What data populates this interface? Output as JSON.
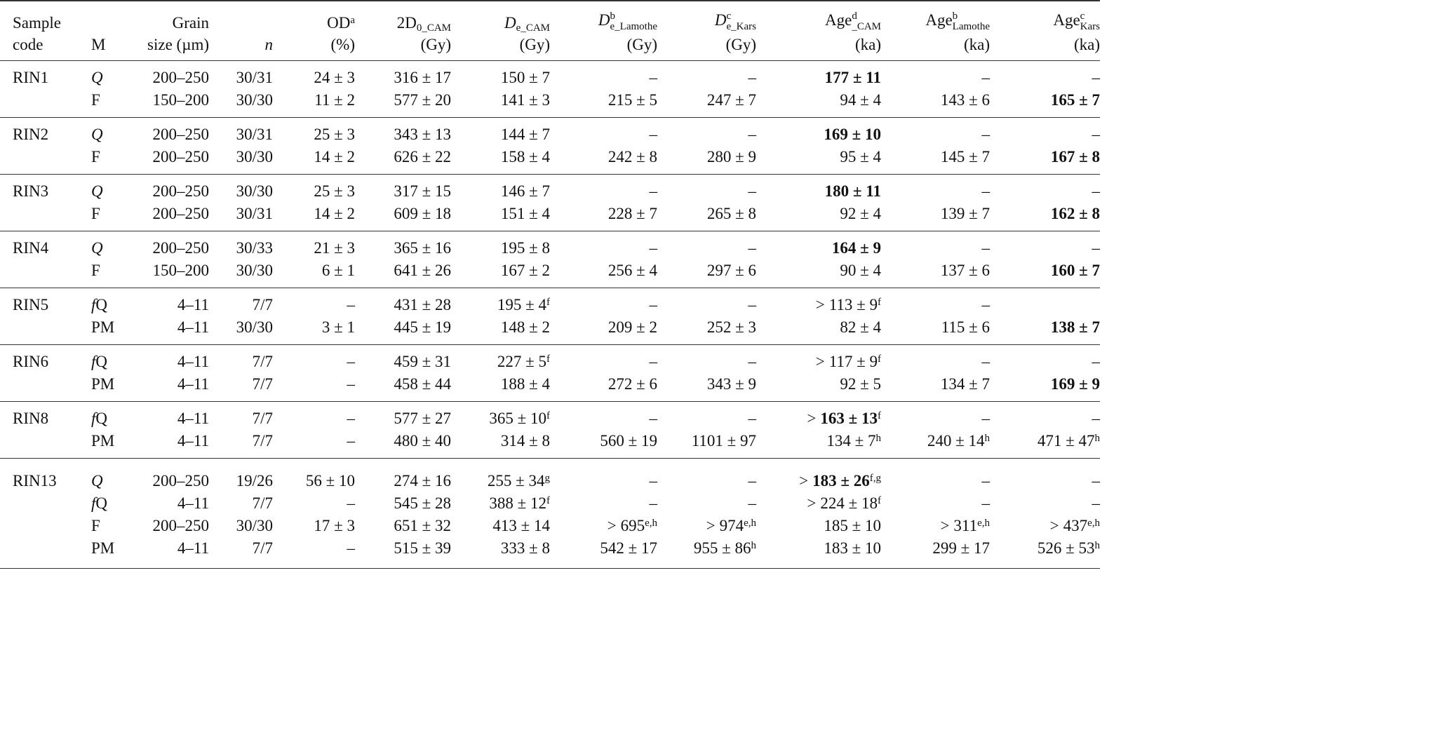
{
  "header": {
    "sample": [
      "Sample",
      "code"
    ],
    "m": "M",
    "grain": [
      "Grain",
      "size (µm)"
    ],
    "n": "n",
    "od": {
      "main": "OD",
      "sup": "a",
      "unit": "(%)"
    },
    "d0": {
      "main": "2D",
      "sub": "0_CAM",
      "unit": "(Gy)"
    },
    "de_cam": {
      "main": "D",
      "sub": "e_CAM",
      "unit": "(Gy)"
    },
    "de_lam": {
      "main": "D",
      "sup": "b",
      "sub": "e_Lamothe",
      "unit": "(Gy)"
    },
    "de_kars": {
      "main": "D",
      "sup": "c",
      "sub": "e_Kars",
      "unit": "(Gy)"
    },
    "age_cam": {
      "main": "Age",
      "sup": "d",
      "sub": "_CAM",
      "unit": "(ka)"
    },
    "age_lam": {
      "main": "Age",
      "sup": "b",
      "sub": "Lamothe",
      "unit": "(ka)"
    },
    "age_kars": {
      "main": "Age",
      "sup": "c",
      "sub": "Kars",
      "unit": "(ka)"
    }
  },
  "groups": [
    {
      "code": "RIN1",
      "rows": [
        [
          {
            "t": "Q",
            "i": true
          },
          {
            "t": "200–250"
          },
          {
            "t": "30/31"
          },
          {
            "t": "24 ± 3"
          },
          {
            "t": "316 ± 17"
          },
          {
            "t": "150 ± 7"
          },
          {
            "t": "–"
          },
          {
            "t": "–"
          },
          {
            "t": "177 ± 11",
            "b": true
          },
          {
            "t": "–"
          },
          {
            "t": "–"
          }
        ],
        [
          {
            "t": "F"
          },
          {
            "t": "150–200"
          },
          {
            "t": "30/30"
          },
          {
            "t": "11 ± 2"
          },
          {
            "t": "577 ± 20"
          },
          {
            "t": "141 ± 3"
          },
          {
            "t": "215 ± 5"
          },
          {
            "t": "247 ± 7"
          },
          {
            "t": "94 ± 4"
          },
          {
            "t": "143 ± 6"
          },
          {
            "t": "165 ± 7",
            "b": true
          }
        ]
      ]
    },
    {
      "code": "RIN2",
      "rows": [
        [
          {
            "t": "Q",
            "i": true
          },
          {
            "t": "200–250"
          },
          {
            "t": "30/31"
          },
          {
            "t": "25 ± 3"
          },
          {
            "t": "343 ± 13"
          },
          {
            "t": "144 ± 7"
          },
          {
            "t": "–"
          },
          {
            "t": "–"
          },
          {
            "t": "169 ± 10",
            "b": true
          },
          {
            "t": "–"
          },
          {
            "t": "–"
          }
        ],
        [
          {
            "t": "F"
          },
          {
            "t": "200–250"
          },
          {
            "t": "30/30"
          },
          {
            "t": "14 ± 2"
          },
          {
            "t": "626 ± 22"
          },
          {
            "t": "158 ± 4"
          },
          {
            "t": "242 ± 8"
          },
          {
            "t": "280 ± 9"
          },
          {
            "t": "95 ± 4"
          },
          {
            "t": "145 ± 7"
          },
          {
            "t": "167 ± 8",
            "b": true
          }
        ]
      ]
    },
    {
      "code": "RIN3",
      "rows": [
        [
          {
            "t": "Q",
            "i": true
          },
          {
            "t": "200–250"
          },
          {
            "t": "30/30"
          },
          {
            "t": "25 ± 3"
          },
          {
            "t": "317 ± 15"
          },
          {
            "t": "146 ± 7"
          },
          {
            "t": "–"
          },
          {
            "t": "–"
          },
          {
            "t": "180 ± 11",
            "b": true
          },
          {
            "t": "–"
          },
          {
            "t": "–"
          }
        ],
        [
          {
            "t": "F"
          },
          {
            "t": "200–250"
          },
          {
            "t": "30/31"
          },
          {
            "t": "14 ± 2"
          },
          {
            "t": "609 ± 18"
          },
          {
            "t": "151 ± 4"
          },
          {
            "t": "228 ± 7"
          },
          {
            "t": "265 ± 8"
          },
          {
            "t": "92 ± 4"
          },
          {
            "t": "139 ± 7"
          },
          {
            "t": "162 ± 8",
            "b": true
          }
        ]
      ]
    },
    {
      "code": "RIN4",
      "rows": [
        [
          {
            "t": "Q",
            "i": true
          },
          {
            "t": "200–250"
          },
          {
            "t": "30/33"
          },
          {
            "t": "21 ± 3"
          },
          {
            "t": "365 ± 16"
          },
          {
            "t": "195 ± 8"
          },
          {
            "t": "–"
          },
          {
            "t": "–"
          },
          {
            "t": "164 ± 9",
            "b": true
          },
          {
            "t": "–"
          },
          {
            "t": "–"
          }
        ],
        [
          {
            "t": "F"
          },
          {
            "t": "150–200"
          },
          {
            "t": "30/30"
          },
          {
            "t": "6 ± 1"
          },
          {
            "t": "641 ± 26"
          },
          {
            "t": "167 ± 2"
          },
          {
            "t": "256 ± 4"
          },
          {
            "t": "297 ± 6"
          },
          {
            "t": "90 ± 4"
          },
          {
            "t": "137 ± 6"
          },
          {
            "t": "160 ± 7",
            "b": true
          }
        ]
      ]
    },
    {
      "code": "RIN5",
      "rows": [
        [
          {
            "t": "Q",
            "pi": "f"
          },
          {
            "t": "4–11"
          },
          {
            "t": "7/7"
          },
          {
            "t": "–"
          },
          {
            "t": "431 ± 28"
          },
          {
            "t": "195 ± 4",
            "sup": "f"
          },
          {
            "t": "–"
          },
          {
            "t": "–"
          },
          {
            "t": "113 ± 9",
            "pre": ">",
            "sup": "f"
          },
          {
            "t": "–"
          },
          {
            "t": ""
          }
        ],
        [
          {
            "t": "PM"
          },
          {
            "t": "4–11"
          },
          {
            "t": "30/30"
          },
          {
            "t": "3 ± 1"
          },
          {
            "t": "445 ± 19"
          },
          {
            "t": "148 ± 2"
          },
          {
            "t": "209 ± 2"
          },
          {
            "t": "252 ± 3"
          },
          {
            "t": "82 ± 4"
          },
          {
            "t": "115 ± 6"
          },
          {
            "t": "138 ± 7",
            "b": true
          }
        ]
      ]
    },
    {
      "code": "RIN6",
      "rows": [
        [
          {
            "t": "Q",
            "pi": "f"
          },
          {
            "t": "4–11"
          },
          {
            "t": "7/7"
          },
          {
            "t": "–"
          },
          {
            "t": "459 ± 31"
          },
          {
            "t": "227 ± 5",
            "sup": "f"
          },
          {
            "t": "–"
          },
          {
            "t": "–"
          },
          {
            "t": "117 ± 9",
            "pre": ">",
            "sup": "f"
          },
          {
            "t": "–"
          },
          {
            "t": "–"
          }
        ],
        [
          {
            "t": "PM"
          },
          {
            "t": "4–11"
          },
          {
            "t": "7/7"
          },
          {
            "t": "–"
          },
          {
            "t": "458 ± 44"
          },
          {
            "t": "188 ± 4"
          },
          {
            "t": "272 ± 6"
          },
          {
            "t": "343 ± 9"
          },
          {
            "t": "92 ± 5"
          },
          {
            "t": "134 ± 7"
          },
          {
            "t": "169 ± 9",
            "b": true
          }
        ]
      ]
    },
    {
      "code": "RIN8",
      "rows": [
        [
          {
            "t": "Q",
            "pi": "f"
          },
          {
            "t": "4–11"
          },
          {
            "t": "7/7"
          },
          {
            "t": "–"
          },
          {
            "t": "577 ± 27"
          },
          {
            "t": "365 ± 10",
            "sup": "f"
          },
          {
            "t": "–"
          },
          {
            "t": "–"
          },
          {
            "t": "163 ± 13",
            "pre": ">",
            "sup": "f",
            "b": true
          },
          {
            "t": "–"
          },
          {
            "t": "–"
          }
        ],
        [
          {
            "t": "PM"
          },
          {
            "t": "4–11"
          },
          {
            "t": "7/7"
          },
          {
            "t": "–"
          },
          {
            "t": "480 ± 40"
          },
          {
            "t": "314 ± 8"
          },
          {
            "t": "560 ± 19"
          },
          {
            "t": "1101 ± 97"
          },
          {
            "t": "134 ± 7",
            "sup": "h"
          },
          {
            "t": "240 ± 14",
            "sup": "h"
          },
          {
            "t": "471 ± 47",
            "sup": "h"
          }
        ]
      ]
    },
    {
      "code": "RIN13",
      "rows": [
        [
          {
            "t": "Q",
            "i": true
          },
          {
            "t": "200–250"
          },
          {
            "t": "19/26"
          },
          {
            "t": "56 ± 10"
          },
          {
            "t": "274 ± 16"
          },
          {
            "t": "255 ± 34",
            "sup": "g"
          },
          {
            "t": "–"
          },
          {
            "t": "–"
          },
          {
            "t": "183 ± 26",
            "pre": ">",
            "sup": "f,g",
            "b": true
          },
          {
            "t": "–"
          },
          {
            "t": "–"
          }
        ],
        [
          {
            "t": "Q",
            "pi": "f"
          },
          {
            "t": "4–11"
          },
          {
            "t": "7/7"
          },
          {
            "t": "–"
          },
          {
            "t": "545 ± 28"
          },
          {
            "t": "388 ± 12",
            "sup": "f"
          },
          {
            "t": "–"
          },
          {
            "t": "–"
          },
          {
            "t": "224 ± 18",
            "pre": ">",
            "sup": "f"
          },
          {
            "t": "–"
          },
          {
            "t": "–"
          }
        ],
        [
          {
            "t": "F"
          },
          {
            "t": "200–250"
          },
          {
            "t": "30/30"
          },
          {
            "t": "17 ± 3"
          },
          {
            "t": "651 ± 32"
          },
          {
            "t": "413 ± 14"
          },
          {
            "t": "695",
            "pre": ">",
            "sup": "e,h"
          },
          {
            "t": "974",
            "pre": ">",
            "sup": "e,h"
          },
          {
            "t": "185 ± 10"
          },
          {
            "t": "311",
            "pre": ">",
            "sup": "e,h"
          },
          {
            "t": "437",
            "pre": ">",
            "sup": "e,h"
          }
        ],
        [
          {
            "t": "PM"
          },
          {
            "t": "4–11"
          },
          {
            "t": "7/7"
          },
          {
            "t": "–"
          },
          {
            "t": "515 ± 39"
          },
          {
            "t": "333 ± 8"
          },
          {
            "t": "542 ± 17"
          },
          {
            "t": "955 ± 86",
            "sup": "h"
          },
          {
            "t": "183 ± 10"
          },
          {
            "t": "299 ± 17"
          },
          {
            "t": "526 ± 53",
            "sup": "h"
          }
        ]
      ]
    }
  ]
}
